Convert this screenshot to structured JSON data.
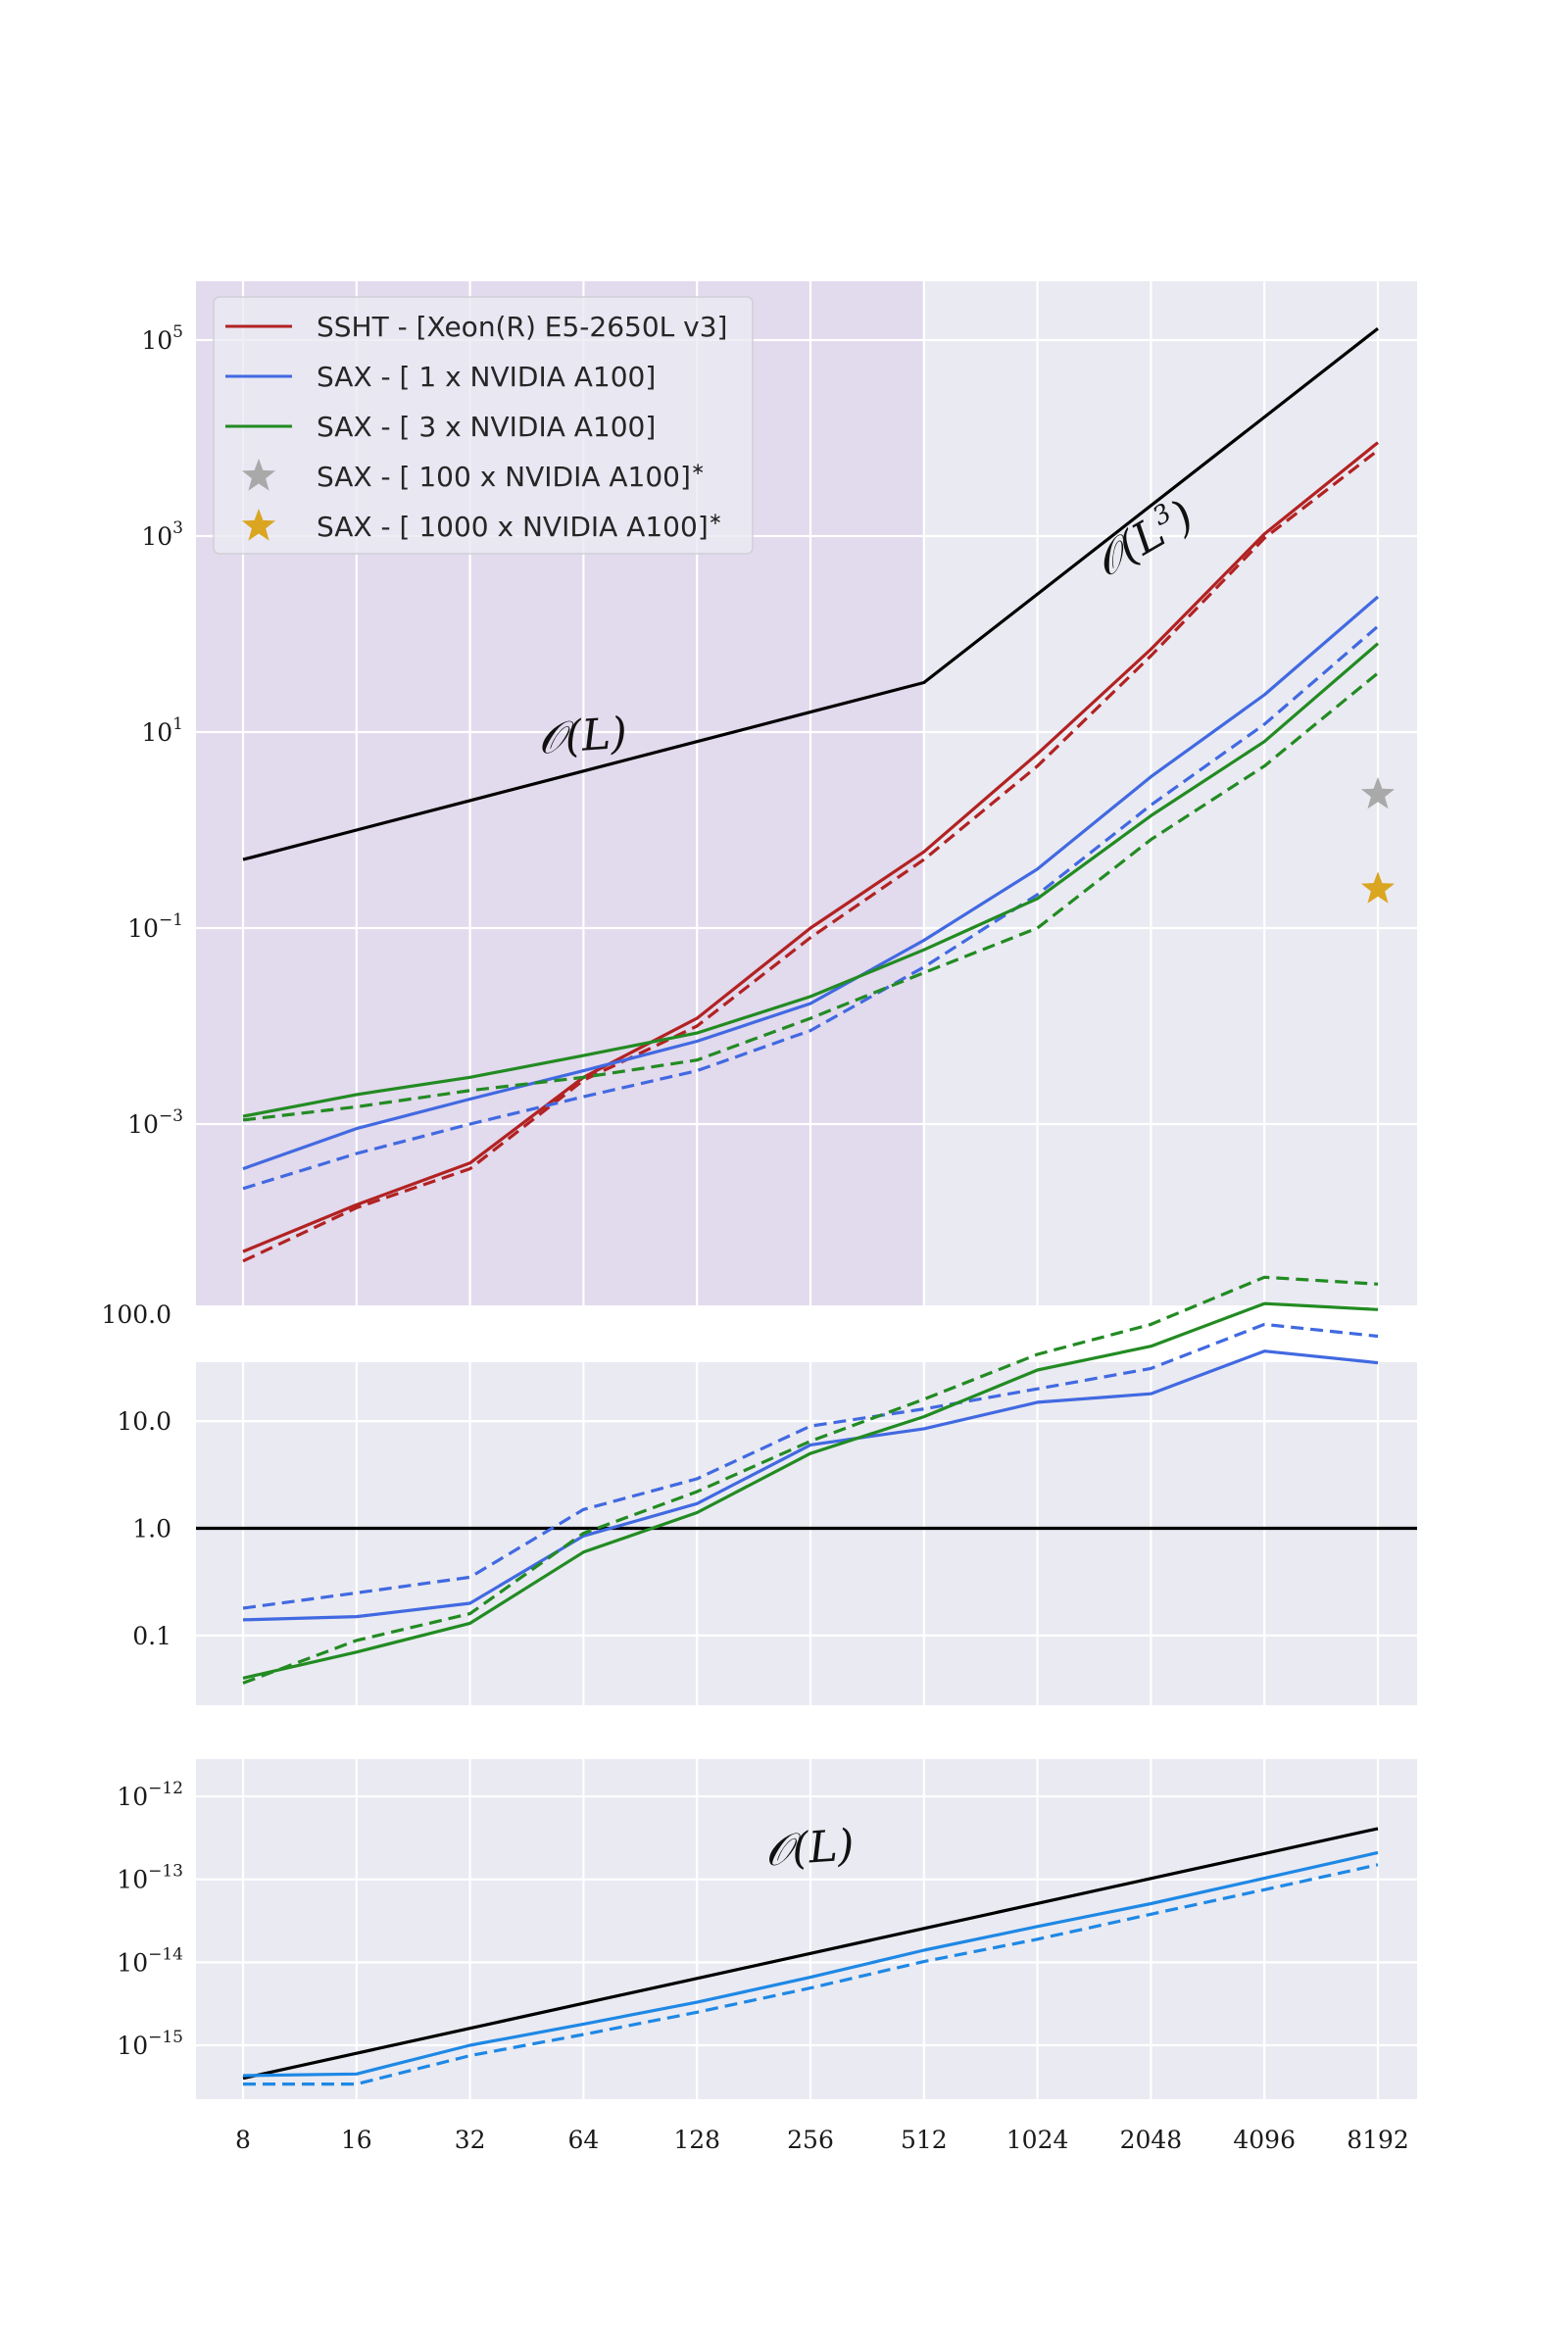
{
  "chart_data": [
    {
      "type": "line",
      "yscale": "log",
      "ylim_log10": [
        -4.85,
        5.6
      ],
      "ytick_exponents": [
        -3,
        -1,
        1,
        3,
        5
      ],
      "shaded_region": {
        "x_from": 8,
        "x_to": 512,
        "color": "#d9c8e6"
      },
      "x": [
        8,
        16,
        32,
        64,
        128,
        256,
        512,
        1024,
        2048,
        4096,
        8192
      ],
      "legend": {
        "placement": "top-left",
        "entries": [
          {
            "label": "SSHT - [Xeon(R) E5-2650L v3]",
            "marker": "line",
            "color": "#b22222"
          },
          {
            "label": "SAX - [ 1 x NVIDIA A100]",
            "marker": "line",
            "color": "#4169e1"
          },
          {
            "label": "SAX - [ 3 x NVIDIA A100]",
            "marker": "line",
            "color": "#228b22"
          },
          {
            "label": "SAX - [ 100 x NVIDIA A100]",
            "sup": "∗",
            "marker": "star",
            "color": "#a9a9a9"
          },
          {
            "label": "SAX - [ 1000 x NVIDIA A100]",
            "sup": "∗",
            "marker": "star",
            "color": "#daa520"
          }
        ]
      },
      "series": [
        {
          "color": "#b22222",
          "style": "solid",
          "values": [
            5e-05,
            0.00015,
            0.0004,
            0.003,
            0.012,
            0.1,
            0.6,
            6,
            70,
            1050,
            9000
          ]
        },
        {
          "color": "#b22222",
          "style": "dashed",
          "values": [
            4e-05,
            0.00014,
            0.00035,
            0.0028,
            0.01,
            0.08,
            0.5,
            4.5,
            60,
            950,
            7500
          ]
        },
        {
          "color": "#4169e1",
          "style": "solid",
          "values": [
            0.00035,
            0.0009,
            0.0018,
            0.0035,
            0.007,
            0.017,
            0.075,
            0.4,
            3.5,
            24,
            240
          ]
        },
        {
          "color": "#4169e1",
          "style": "dashed",
          "values": [
            0.00022,
            0.0005,
            0.001,
            0.0019,
            0.0035,
            0.009,
            0.04,
            0.22,
            1.8,
            12,
            120
          ]
        },
        {
          "color": "#228b22",
          "style": "solid",
          "values": [
            0.0012,
            0.002,
            0.003,
            0.005,
            0.0085,
            0.02,
            0.06,
            0.2,
            1.4,
            8,
            80
          ]
        },
        {
          "color": "#228b22",
          "style": "dashed",
          "values": [
            0.0011,
            0.0015,
            0.0022,
            0.003,
            0.0045,
            0.012,
            0.035,
            0.1,
            0.8,
            4.5,
            40
          ]
        },
        {
          "color": "#000000",
          "style": "solid",
          "values": [
            0.5,
            1,
            2,
            4,
            8,
            16,
            32,
            256,
            2048,
            16384,
            131072
          ]
        }
      ],
      "points": [
        {
          "x": 8192,
          "y": 2.3,
          "marker": "star",
          "color": "#a9a9a9"
        },
        {
          "x": 8192,
          "y": 0.25,
          "marker": "star",
          "color": "#daa520"
        }
      ],
      "annotations": [
        {
          "text": "𝒪(L)",
          "x": 64,
          "y": 6.5,
          "rotation": -4
        },
        {
          "text": "𝒪(L",
          "sup": "3",
          "suffix": ")",
          "x": 2048,
          "y": 700,
          "rotation": -30
        }
      ]
    },
    {
      "type": "line",
      "yscale": "log",
      "ylim_log10": [
        -1.65,
        1.55
      ],
      "ytick_labels": [
        "100.0",
        "10.0",
        "1.0",
        "0.1"
      ],
      "ytick_values": [
        100,
        10,
        1,
        0.1
      ],
      "x": [
        8,
        16,
        32,
        64,
        128,
        256,
        512,
        1024,
        2048,
        4096,
        8192
      ],
      "hline": {
        "y": 1,
        "color": "#000000"
      },
      "series": [
        {
          "color": "#4169e1",
          "style": "solid",
          "values": [
            0.14,
            0.15,
            0.2,
            0.85,
            1.7,
            6,
            8.5,
            15,
            18,
            45,
            35
          ]
        },
        {
          "color": "#4169e1",
          "style": "dashed",
          "values": [
            0.18,
            0.25,
            0.35,
            1.5,
            2.9,
            9,
            13,
            20,
            31,
            80,
            62
          ]
        },
        {
          "color": "#228b22",
          "style": "solid",
          "values": [
            0.04,
            0.07,
            0.13,
            0.6,
            1.4,
            5,
            11,
            30,
            50,
            125,
            110
          ]
        },
        {
          "color": "#228b22",
          "style": "dashed",
          "values": [
            0.036,
            0.09,
            0.16,
            0.9,
            2.2,
            6.5,
            16,
            42,
            80,
            220,
            190
          ]
        }
      ]
    },
    {
      "type": "line",
      "yscale": "log",
      "ylim_log10": [
        -15.65,
        -11.55
      ],
      "ytick_exponents": [
        -12,
        -13,
        -14,
        -15
      ],
      "x": [
        8,
        16,
        32,
        64,
        128,
        256,
        512,
        1024,
        2048,
        4096,
        8192
      ],
      "xtick_labels": [
        "8",
        "16",
        "32",
        "64",
        "128",
        "256",
        "512",
        "1024",
        "2048",
        "4096",
        "8192"
      ],
      "series": [
        {
          "color": "#000000",
          "style": "solid",
          "values": [
            4e-16,
            8e-16,
            1.6e-15,
            3.2e-15,
            6.4e-15,
            1.28e-14,
            2.56e-14,
            5.12e-14,
            1.024e-13,
            2.048e-13,
            4.096e-13
          ]
        },
        {
          "color": "#1e88e5",
          "style": "solid",
          "values": [
            4.3e-16,
            4.5e-16,
            1e-15,
            1.8e-15,
            3.3e-15,
            6.6e-15,
            1.4e-14,
            2.7e-14,
            5.1e-14,
            1.03e-13,
            2.1e-13
          ]
        },
        {
          "color": "#1e88e5",
          "style": "dashed",
          "values": [
            3.4e-16,
            3.4e-16,
            7.5e-16,
            1.35e-15,
            2.5e-15,
            4.9e-15,
            1.02e-14,
            1.9e-14,
            3.8e-14,
            7.5e-14,
            1.5e-13
          ]
        }
      ],
      "annotations": [
        {
          "text": "𝒪(L)",
          "x": 256,
          "y": 1.6e-13,
          "rotation": -4
        }
      ]
    }
  ]
}
